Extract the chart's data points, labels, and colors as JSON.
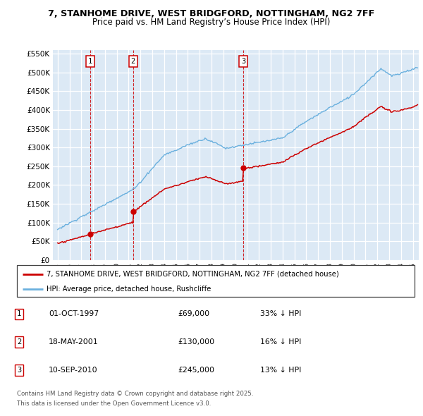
{
  "title_line1": "7, STANHOME DRIVE, WEST BRIDGFORD, NOTTINGHAM, NG2 7FF",
  "title_line2": "Price paid vs. HM Land Registry’s House Price Index (HPI)",
  "bg_color": "#dce9f5",
  "red_line_color": "#cc0000",
  "blue_line_color": "#6ab0de",
  "sale_dates_num": [
    1997.75,
    2001.37,
    2010.69
  ],
  "sale_prices": [
    69000,
    130000,
    245000
  ],
  "sale_labels": [
    "1",
    "2",
    "3"
  ],
  "sale_date_strings": [
    "01-OCT-1997",
    "18-MAY-2001",
    "10-SEP-2010"
  ],
  "sale_price_strings": [
    "£69,000",
    "£130,000",
    "£245,000"
  ],
  "sale_hpi_strings": [
    "33% ↓ HPI",
    "16% ↓ HPI",
    "13% ↓ HPI"
  ],
  "legend_line1": "7, STANHOME DRIVE, WEST BRIDGFORD, NOTTINGHAM, NG2 7FF (detached house)",
  "legend_line2": "HPI: Average price, detached house, Rushcliffe",
  "footnote1": "Contains HM Land Registry data © Crown copyright and database right 2025.",
  "footnote2": "This data is licensed under the Open Government Licence v3.0.",
  "ylim_max": 560000,
  "xlim_start": 1994.6,
  "xlim_end": 2025.5
}
